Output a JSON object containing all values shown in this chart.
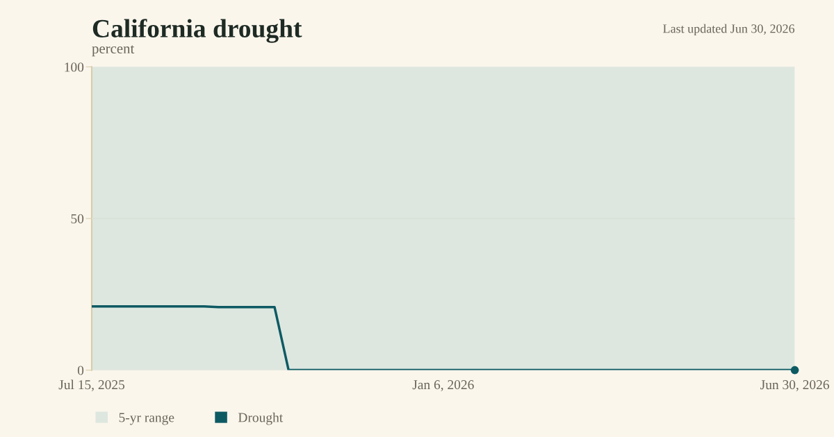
{
  "chart_data": {
    "type": "line",
    "title": "California drought",
    "subtitle": "percent",
    "annotations": [
      "Last updated Jun 30, 2026"
    ],
    "series": [
      {
        "name": "Drought",
        "color": "#0d5a63",
        "x": [
          "2025-07-15",
          "2025-09-09",
          "2025-09-16",
          "2025-10-14",
          "2025-10-21",
          "2026-06-30"
        ],
        "values": [
          21.0,
          21.0,
          20.8,
          20.8,
          0,
          0
        ]
      },
      {
        "type": "scatter",
        "color": "#0d5a63",
        "marker": "circle",
        "x": [
          "2026-06-30"
        ],
        "values": [
          0
        ]
      }
    ],
    "bands": [
      {
        "axis": "y",
        "from": 0,
        "to": 100,
        "label": "5-yr range",
        "color": "#dde7e0"
      }
    ],
    "xlim": [
      "2025-07-15",
      "2026-06-30"
    ],
    "xticks": [
      {
        "value": "2025-07-15",
        "label": "Jul 15, 2025"
      },
      {
        "value": "2026-01-06",
        "label": "Jan 6, 2026"
      },
      {
        "value": "2026-06-30",
        "label": "Jun 30, 2026"
      }
    ],
    "ylim": [
      0,
      100
    ],
    "yticks": [
      0,
      50,
      100
    ],
    "grid": "y",
    "legend": "bottom left",
    "line_style": "solid"
  }
}
